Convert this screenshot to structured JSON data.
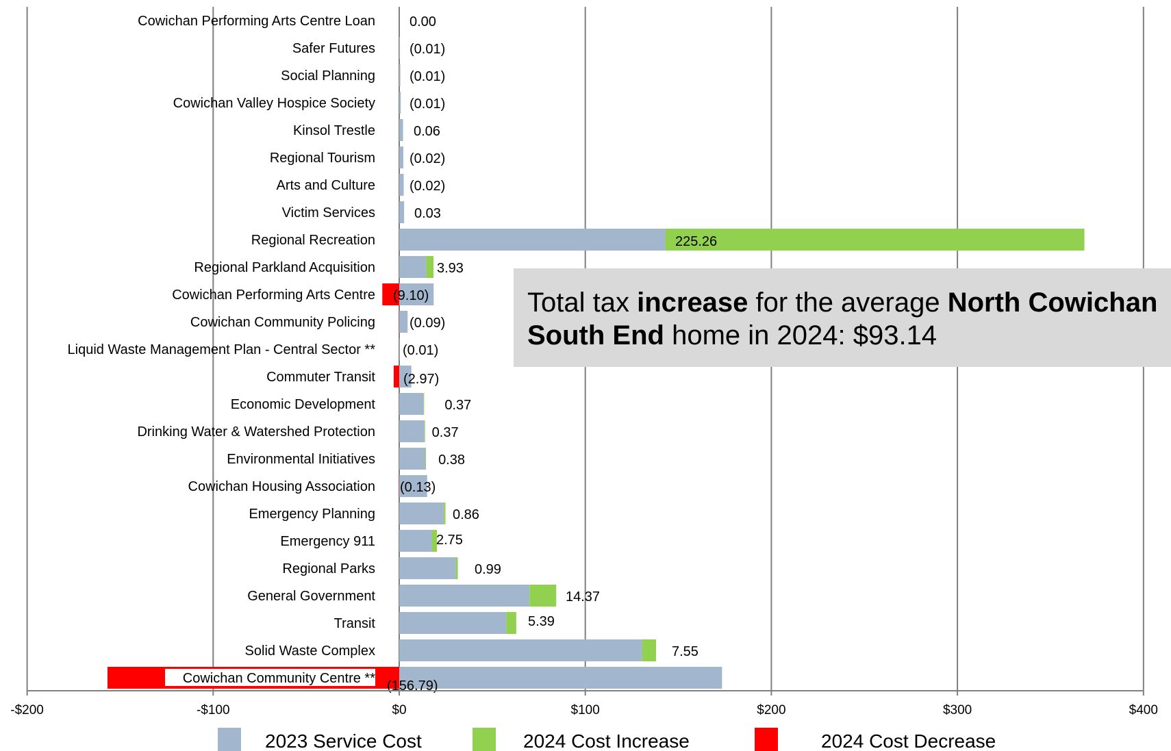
{
  "chart_data": {
    "type": "bar",
    "orientation": "horizontal",
    "stacked": true,
    "categories": [
      "Cowichan Performing Arts Centre Loan",
      "Safer Futures",
      "Social Planning",
      "Cowichan Valley Hospice Society",
      "Kinsol Trestle",
      "Regional Tourism",
      "Arts and Culture",
      "Victim Services",
      "Regional Recreation",
      "Regional Parkland Acquisition",
      "Cowichan Performing Arts Centre",
      "Cowichan Community Policing",
      "Liquid Waste Management Plan - Central Sector **",
      "Commuter Transit",
      "Economic Development",
      "Drinking Water & Watershed Protection",
      "Environmental Initiatives",
      "Cowichan Housing Association",
      "Emergency Planning",
      "Emergency 911",
      "Regional Parks",
      "General Government",
      "Transit",
      "Solid Waste Complex",
      "Cowichan Community Centre  **"
    ],
    "series": [
      {
        "name": "2023 Service Cost",
        "color": "#a2b7cd",
        "values": [
          0.0,
          0.4,
          0.6,
          0.8,
          2.0,
          2.2,
          2.4,
          2.6,
          143.0,
          14.5,
          18.5,
          4.5,
          0.3,
          6.5,
          13.0,
          13.5,
          14.0,
          15.0,
          24.0,
          17.5,
          30.5,
          70.0,
          57.5,
          130.5,
          173.5
        ]
      },
      {
        "name": "2024 Cost Increase",
        "color": "#92d050",
        "values": [
          0,
          0,
          0,
          0,
          0.06,
          0,
          0,
          0.03,
          225.26,
          3.93,
          0,
          0,
          0,
          0,
          0.37,
          0.37,
          0.38,
          0,
          0.86,
          2.75,
          0.99,
          14.37,
          5.39,
          7.55,
          0
        ]
      },
      {
        "name": "2024 Cost Decrease",
        "color": "#ff0000",
        "values": [
          0,
          -0.01,
          -0.01,
          -0.01,
          0,
          -0.02,
          -0.02,
          0,
          0,
          0,
          -9.1,
          -0.09,
          -0.01,
          -2.97,
          0,
          0,
          0,
          -0.13,
          0,
          0,
          0,
          0,
          0,
          0,
          -156.79
        ]
      }
    ],
    "data_labels": [
      "0.00",
      "(0.01)",
      "(0.01)",
      "(0.01)",
      "0.06",
      "(0.02)",
      "(0.02)",
      "0.03",
      "225.26",
      "3.93",
      "(9.10)",
      "(0.09)",
      "(0.01)",
      "(2.97)",
      "0.37",
      "0.37",
      "0.38",
      "(0.13)",
      "0.86",
      "2.75",
      "0.99",
      "14.37",
      "5.39",
      "7.55",
      "(156.79)"
    ],
    "x_ticks": [
      "-$200",
      "-$100",
      "$0",
      "$100",
      "$200",
      "$300",
      "$400"
    ],
    "xlim": [
      -200,
      400
    ],
    "grid": true,
    "legend_position": "bottom"
  },
  "callout": {
    "p1": "Total tax ",
    "b1": "increase",
    "p2": " for the average ",
    "b2": "North Cowichan South End",
    "p3": " home in 2024: $93.14"
  }
}
